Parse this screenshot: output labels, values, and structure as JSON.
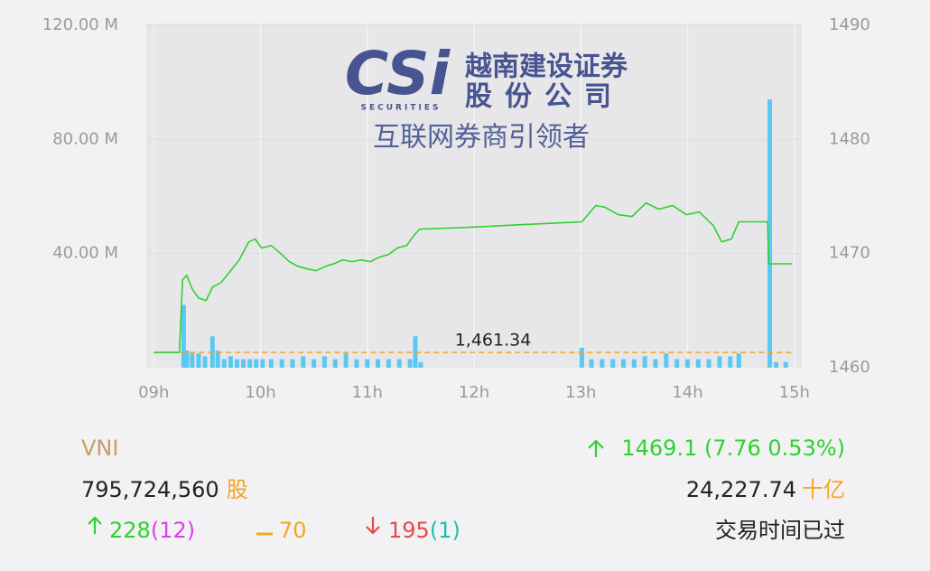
{
  "chart_data": {
    "type": "line",
    "xlim": [
      8.93,
      15.07
    ],
    "xticks": [
      {
        "value": 9,
        "label": "09h"
      },
      {
        "value": 10,
        "label": "10h"
      },
      {
        "value": 11,
        "label": "11h"
      },
      {
        "value": 12,
        "label": "12h"
      },
      {
        "value": 13,
        "label": "13h"
      },
      {
        "value": 14,
        "label": "14h"
      },
      {
        "value": 15,
        "label": "15h"
      }
    ],
    "ylim": [
      0,
      120
    ],
    "yticks": [
      {
        "value": 40,
        "label": "40.00 M"
      },
      {
        "value": 80,
        "label": "80.00 M"
      },
      {
        "value": 120,
        "label": "120.00 M"
      }
    ],
    "y2lim": [
      1460,
      1490
    ],
    "y2ticks": [
      1460,
      1470,
      1480,
      1490
    ],
    "grid": true,
    "reference_line": {
      "value": 1461.34,
      "label": "1,461.34",
      "axis": "y2",
      "color": "#f5a623"
    },
    "series": [
      {
        "type": "line",
        "axis": "y2",
        "color": "#2fd12f",
        "x": [
          9.0,
          9.24,
          9.27,
          9.31,
          9.36,
          9.42,
          9.49,
          9.55,
          9.63,
          9.72,
          9.8,
          9.89,
          9.95,
          10.01,
          10.1,
          10.18,
          10.27,
          10.35,
          10.44,
          10.52,
          10.61,
          10.69,
          10.77,
          10.86,
          10.94,
          11.03,
          11.11,
          11.2,
          11.28,
          11.37,
          11.43,
          11.49,
          11.96,
          12.46,
          13.01,
          13.14,
          13.23,
          13.35,
          13.48,
          13.61,
          13.73,
          13.86,
          13.99,
          14.11,
          14.24,
          14.32,
          14.41,
          14.48,
          14.75,
          14.76,
          14.98
        ],
        "values": [
          1461.34,
          1461.34,
          1467.7,
          1468.1,
          1466.9,
          1466.11,
          1465.87,
          1467.06,
          1467.46,
          1468.49,
          1469.44,
          1471.03,
          1471.27,
          1470.48,
          1470.71,
          1470.08,
          1469.29,
          1468.89,
          1468.65,
          1468.49,
          1468.89,
          1469.13,
          1469.44,
          1469.29,
          1469.44,
          1469.29,
          1469.68,
          1469.92,
          1470.48,
          1470.71,
          1471.51,
          1472.14,
          1472.3,
          1472.54,
          1472.78,
          1474.21,
          1474.05,
          1473.41,
          1473.25,
          1474.44,
          1473.89,
          1474.21,
          1473.41,
          1473.65,
          1472.46,
          1471.03,
          1471.27,
          1472.78,
          1472.78,
          1469.1,
          1469.1
        ]
      },
      {
        "type": "bar",
        "color": "#5ac8f2",
        "x": [
          9.28,
          9.31,
          9.36,
          9.42,
          9.48,
          9.55,
          9.6,
          9.66,
          9.72,
          9.78,
          9.84,
          9.9,
          9.96,
          10.02,
          10.1,
          10.2,
          10.3,
          10.4,
          10.5,
          10.6,
          10.7,
          10.8,
          10.9,
          11.0,
          11.1,
          11.2,
          11.3,
          11.4,
          11.45,
          11.5,
          13.01,
          13.1,
          13.2,
          13.3,
          13.4,
          13.5,
          13.6,
          13.7,
          13.8,
          13.9,
          14.0,
          14.1,
          14.2,
          14.3,
          14.4,
          14.48,
          14.77,
          14.83,
          14.92
        ],
        "values": [
          22,
          6,
          5,
          5,
          4,
          11,
          6,
          3,
          4,
          3,
          3,
          3,
          3,
          3,
          3,
          3,
          3,
          4,
          3,
          4,
          3,
          5,
          3,
          3,
          3,
          3,
          3,
          3,
          11,
          2,
          7,
          3,
          3,
          3,
          3,
          3,
          4,
          3,
          5,
          3,
          3,
          3,
          3,
          4,
          4,
          5,
          94,
          2,
          2
        ]
      }
    ]
  },
  "watermark": {
    "logo": "CSi",
    "logo_sub": "SECURITIES",
    "name_line1": "越南建设证券",
    "name_line2": "股份公司",
    "slogan": "互联网券商引领者"
  },
  "summary": {
    "index": "VNI",
    "change": "1469.1 (7.76 0.53%)",
    "volume": "795,724,560",
    "volume_unit": "股",
    "value": "24,227.74",
    "value_unit": "十亿",
    "advances": "228",
    "advances_ceiling": "(12)",
    "unchanged": "70",
    "declines": "195",
    "declines_floor": "(1)",
    "status": "交易时间已过"
  }
}
